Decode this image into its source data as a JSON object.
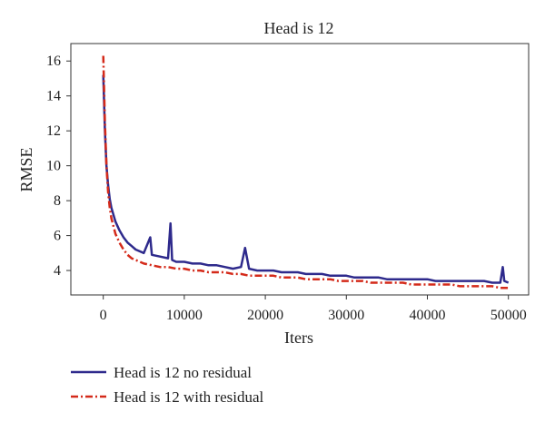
{
  "chart_data": {
    "type": "line",
    "title": "Head is 12",
    "xlabel": "Iters",
    "ylabel": "RMSE",
    "xlim": [
      -4000,
      52500
    ],
    "ylim": [
      2.6,
      17.0
    ],
    "xticks": [
      0,
      10000,
      20000,
      30000,
      40000,
      50000
    ],
    "xtick_labels": [
      "0",
      "10000",
      "20000",
      "30000",
      "40000",
      "50000"
    ],
    "yticks": [
      4,
      6,
      8,
      10,
      12,
      14,
      16
    ],
    "ytick_labels": [
      "4",
      "6",
      "8",
      "10",
      "12",
      "14",
      "16"
    ],
    "grid": false,
    "legend_position": "bottom",
    "series": [
      {
        "name": "Head is 12 no residual",
        "style": "solid",
        "color": "#2e2a8c",
        "x": [
          0,
          200,
          400,
          600,
          800,
          1000,
          1500,
          2000,
          2500,
          3000,
          3500,
          4000,
          5000,
          5800,
          6000,
          7000,
          8000,
          8300,
          8500,
          9000,
          10000,
          11000,
          12000,
          13000,
          14000,
          15000,
          16000,
          17000,
          17500,
          18000,
          19000,
          20000,
          21000,
          22000,
          23000,
          24000,
          25000,
          26000,
          27000,
          28000,
          29000,
          30000,
          31000,
          32000,
          33000,
          34000,
          35000,
          36000,
          37000,
          38000,
          39000,
          40000,
          41000,
          42000,
          43000,
          44000,
          45000,
          46000,
          47000,
          48000,
          49000,
          49300,
          49500,
          50000
        ],
        "y": [
          15.2,
          12.0,
          10.0,
          8.9,
          8.1,
          7.6,
          6.8,
          6.3,
          5.9,
          5.6,
          5.4,
          5.2,
          5.0,
          5.9,
          4.9,
          4.8,
          4.7,
          6.7,
          4.6,
          4.5,
          4.5,
          4.4,
          4.4,
          4.3,
          4.3,
          4.2,
          4.1,
          4.2,
          5.3,
          4.1,
          4.0,
          4.0,
          4.0,
          3.9,
          3.9,
          3.9,
          3.8,
          3.8,
          3.8,
          3.7,
          3.7,
          3.7,
          3.6,
          3.6,
          3.6,
          3.6,
          3.5,
          3.5,
          3.5,
          3.5,
          3.5,
          3.5,
          3.4,
          3.4,
          3.4,
          3.4,
          3.4,
          3.4,
          3.4,
          3.3,
          3.3,
          4.2,
          3.4,
          3.3
        ]
      },
      {
        "name": "Head is 12 with residual",
        "style": "dashdot",
        "color": "#d42a1a",
        "x": [
          0,
          200,
          400,
          600,
          800,
          1000,
          1500,
          2000,
          2500,
          3000,
          3500,
          4000,
          5000,
          6000,
          7000,
          8000,
          9000,
          10000,
          11000,
          12000,
          13000,
          14000,
          15000,
          16000,
          17000,
          18000,
          19000,
          20000,
          21000,
          22000,
          23000,
          24000,
          25000,
          26000,
          27000,
          28000,
          29000,
          30000,
          31000,
          32000,
          33000,
          34000,
          35000,
          36000,
          37000,
          38000,
          39000,
          40000,
          41000,
          42000,
          43000,
          44000,
          45000,
          46000,
          47000,
          48000,
          49000,
          50000
        ],
        "y": [
          16.3,
          12.5,
          10.0,
          8.5,
          7.6,
          7.0,
          6.1,
          5.6,
          5.2,
          4.9,
          4.7,
          4.6,
          4.4,
          4.3,
          4.2,
          4.2,
          4.1,
          4.1,
          4.0,
          4.0,
          3.9,
          3.9,
          3.9,
          3.8,
          3.8,
          3.7,
          3.7,
          3.7,
          3.7,
          3.6,
          3.6,
          3.6,
          3.5,
          3.5,
          3.5,
          3.5,
          3.4,
          3.4,
          3.4,
          3.4,
          3.3,
          3.3,
          3.3,
          3.3,
          3.3,
          3.2,
          3.2,
          3.2,
          3.2,
          3.2,
          3.2,
          3.1,
          3.1,
          3.1,
          3.1,
          3.1,
          3.0,
          3.0
        ]
      }
    ]
  }
}
